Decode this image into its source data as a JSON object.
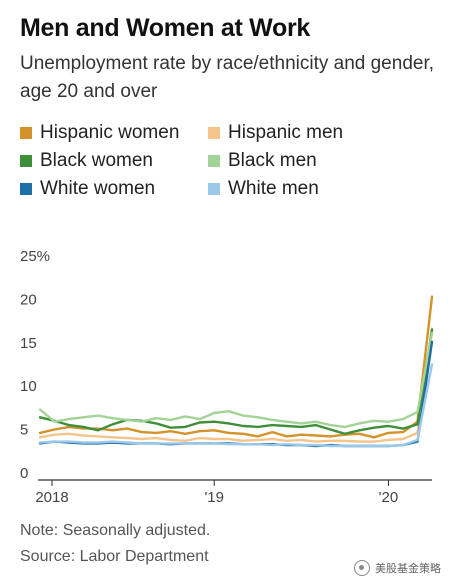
{
  "title": "Men and Women at Work",
  "subtitle": "Unemployment rate by race/ethnicity and gender, age 20 and over",
  "note": "Note: Seasonally adjusted.",
  "source": "Source: Labor Department",
  "watermark": "美股基金策略",
  "chart_data": {
    "type": "line",
    "title": "Men and Women at Work",
    "subtitle": "Unemployment rate by race/ethnicity and gender, age 20 and over",
    "xlabel": "",
    "ylabel": "",
    "ylim": [
      0,
      25
    ],
    "y_ticks": [
      "0",
      "5",
      "10",
      "15",
      "20",
      "25%"
    ],
    "x_ticks": [
      "2018",
      "'19",
      "'20"
    ],
    "x": [
      "2018-01",
      "2018-02",
      "2018-03",
      "2018-04",
      "2018-05",
      "2018-06",
      "2018-07",
      "2018-08",
      "2018-09",
      "2018-10",
      "2018-11",
      "2018-12",
      "2019-01",
      "2019-02",
      "2019-03",
      "2019-04",
      "2019-05",
      "2019-06",
      "2019-07",
      "2019-08",
      "2019-09",
      "2019-10",
      "2019-11",
      "2019-12",
      "2020-01",
      "2020-02",
      "2020-03",
      "2020-04"
    ],
    "grid": false,
    "legend_position": "top",
    "series": [
      {
        "name": "Hispanic women",
        "color": "#d4922a",
        "values": [
          4.5,
          4.9,
          5.2,
          5.0,
          5.0,
          4.8,
          5.0,
          4.6,
          4.5,
          4.7,
          4.4,
          4.7,
          4.8,
          4.5,
          4.4,
          4.1,
          4.6,
          4.1,
          4.3,
          4.2,
          4.1,
          4.3,
          4.4,
          4.0,
          4.5,
          4.6,
          5.8,
          20.2
        ]
      },
      {
        "name": "Hispanic men",
        "color": "#f5c48a",
        "values": [
          4.0,
          4.3,
          4.4,
          4.2,
          4.1,
          4.0,
          3.9,
          3.8,
          3.9,
          3.7,
          3.6,
          3.9,
          3.8,
          3.8,
          3.6,
          3.7,
          3.8,
          3.6,
          3.7,
          3.5,
          3.6,
          3.6,
          3.5,
          3.5,
          3.7,
          3.8,
          4.5,
          16.5
        ]
      },
      {
        "name": "Black women",
        "color": "#3f8f3a",
        "values": [
          6.3,
          5.9,
          5.4,
          5.2,
          4.8,
          5.5,
          6.0,
          5.9,
          5.6,
          5.1,
          5.2,
          5.7,
          5.8,
          5.6,
          5.3,
          5.2,
          5.4,
          5.3,
          5.2,
          5.4,
          4.9,
          4.4,
          4.8,
          5.1,
          5.3,
          5.0,
          5.5,
          16.4
        ]
      },
      {
        "name": "Black men",
        "color": "#a3d396",
        "values": [
          7.2,
          5.8,
          6.1,
          6.3,
          6.5,
          6.2,
          6.0,
          5.8,
          6.2,
          6.0,
          6.4,
          6.1,
          6.8,
          7.0,
          6.5,
          6.3,
          6.0,
          5.8,
          5.6,
          5.8,
          5.4,
          5.2,
          5.6,
          5.9,
          5.8,
          6.1,
          6.9,
          16.0
        ]
      },
      {
        "name": "White women",
        "color": "#1d6fa5",
        "values": [
          3.3,
          3.5,
          3.4,
          3.3,
          3.3,
          3.4,
          3.3,
          3.3,
          3.3,
          3.2,
          3.3,
          3.3,
          3.3,
          3.3,
          3.2,
          3.2,
          3.2,
          3.1,
          3.1,
          3.0,
          3.1,
          3.0,
          3.0,
          3.0,
          3.0,
          3.1,
          3.5,
          15.0
        ]
      },
      {
        "name": "White men",
        "color": "#9cc9ea",
        "values": [
          3.4,
          3.5,
          3.5,
          3.4,
          3.4,
          3.5,
          3.4,
          3.3,
          3.3,
          3.3,
          3.3,
          3.3,
          3.3,
          3.2,
          3.2,
          3.2,
          3.1,
          3.2,
          3.1,
          3.1,
          3.0,
          3.0,
          3.0,
          3.0,
          3.0,
          3.1,
          3.7,
          12.4
        ]
      }
    ]
  }
}
